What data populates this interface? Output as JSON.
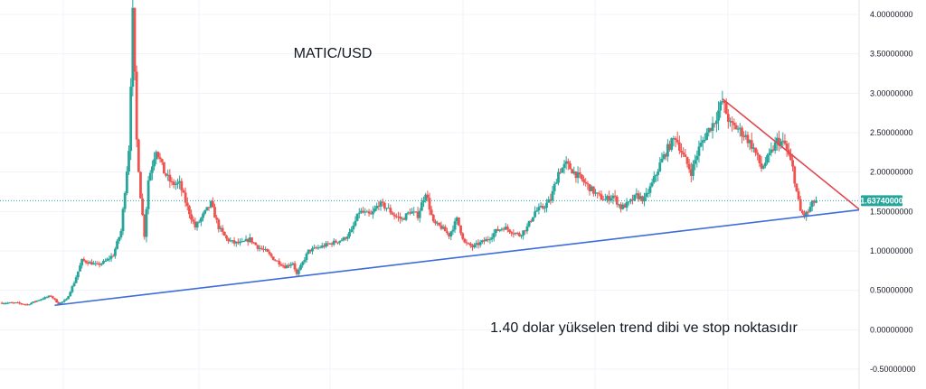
{
  "chart_data": {
    "type": "candlestick",
    "title": "MATIC/USD",
    "annotation": "1.40 dolar yükselen trend dibi ve stop noktasıdır",
    "y_ticks": [
      "4.00000000",
      "3.50000000",
      "3.00000000",
      "2.50000000",
      "2.00000000",
      "1.50000000",
      "1.00000000",
      "0.50000000",
      "0.00000000",
      "-0.50000000"
    ],
    "y_tick_values": [
      4.0,
      3.5,
      3.0,
      2.5,
      2.0,
      1.5,
      1.0,
      0.5,
      0.0,
      -0.5
    ],
    "ylim": [
      -0.55,
      4.0
    ],
    "x_range": [
      0,
      220
    ],
    "grid": true,
    "current_price": 1.6374,
    "current_price_label": "1.63740000",
    "price_line_color": "#26a69a",
    "up_color": "#26a69a",
    "down_color": "#ef5350",
    "trend_lines": [
      {
        "name": "rising-support",
        "color": "#3d6ddb",
        "points": [
          [
            14,
            0.31
          ],
          [
            220,
            1.52
          ]
        ]
      },
      {
        "name": "falling-resistance",
        "color": "#e0474f",
        "points": [
          [
            185,
            2.93
          ],
          [
            220,
            1.53
          ]
        ]
      }
    ],
    "close_path": [
      [
        0,
        0.34
      ],
      [
        4,
        0.34
      ],
      [
        7,
        0.32
      ],
      [
        10,
        0.38
      ],
      [
        13,
        0.43
      ],
      [
        15,
        0.33
      ],
      [
        17,
        0.38
      ],
      [
        19,
        0.6
      ],
      [
        21,
        0.88
      ],
      [
        23,
        0.85
      ],
      [
        25,
        0.82
      ],
      [
        27,
        0.87
      ],
      [
        29,
        0.95
      ],
      [
        31,
        1.25
      ],
      [
        33,
        2.3
      ],
      [
        34,
        4.0
      ],
      [
        35,
        2.4
      ],
      [
        36,
        1.7
      ],
      [
        37,
        1.2
      ],
      [
        38,
        1.9
      ],
      [
        40,
        2.3
      ],
      [
        42,
        2.0
      ],
      [
        44,
        1.85
      ],
      [
        46,
        1.85
      ],
      [
        48,
        1.55
      ],
      [
        50,
        1.3
      ],
      [
        52,
        1.45
      ],
      [
        54,
        1.6
      ],
      [
        56,
        1.3
      ],
      [
        58,
        1.15
      ],
      [
        60,
        1.1
      ],
      [
        62,
        1.1
      ],
      [
        64,
        1.15
      ],
      [
        66,
        1.05
      ],
      [
        68,
        1.0
      ],
      [
        70,
        0.9
      ],
      [
        73,
        0.8
      ],
      [
        75,
        0.85
      ],
      [
        76,
        0.7
      ],
      [
        77,
        0.8
      ],
      [
        79,
        1.0
      ],
      [
        82,
        1.05
      ],
      [
        85,
        1.1
      ],
      [
        88,
        1.15
      ],
      [
        90,
        1.25
      ],
      [
        92,
        1.5
      ],
      [
        95,
        1.45
      ],
      [
        97,
        1.6
      ],
      [
        99,
        1.55
      ],
      [
        101,
        1.45
      ],
      [
        103,
        1.4
      ],
      [
        105,
        1.5
      ],
      [
        107,
        1.45
      ],
      [
        109,
        1.75
      ],
      [
        111,
        1.35
      ],
      [
        113,
        1.3
      ],
      [
        115,
        1.2
      ],
      [
        117,
        1.4
      ],
      [
        119,
        1.1
      ],
      [
        121,
        1.05
      ],
      [
        123,
        1.1
      ],
      [
        125,
        1.15
      ],
      [
        127,
        1.25
      ],
      [
        129,
        1.3
      ],
      [
        131,
        1.25
      ],
      [
        133,
        1.2
      ],
      [
        135,
        1.3
      ],
      [
        137,
        1.5
      ],
      [
        139,
        1.55
      ],
      [
        141,
        1.65
      ],
      [
        143,
        2.0
      ],
      [
        145,
        2.1
      ],
      [
        147,
        2.0
      ],
      [
        149,
        1.9
      ],
      [
        151,
        1.8
      ],
      [
        153,
        1.7
      ],
      [
        155,
        1.65
      ],
      [
        157,
        1.7
      ],
      [
        159,
        1.55
      ],
      [
        161,
        1.6
      ],
      [
        163,
        1.7
      ],
      [
        165,
        1.65
      ],
      [
        167,
        1.85
      ],
      [
        169,
        2.1
      ],
      [
        171,
        2.3
      ],
      [
        173,
        2.45
      ],
      [
        175,
        2.2
      ],
      [
        177,
        2.0
      ],
      [
        179,
        2.3
      ],
      [
        181,
        2.5
      ],
      [
        183,
        2.65
      ],
      [
        185,
        2.9
      ],
      [
        187,
        2.6
      ],
      [
        189,
        2.55
      ],
      [
        191,
        2.45
      ],
      [
        193,
        2.3
      ],
      [
        195,
        2.05
      ],
      [
        197,
        2.2
      ],
      [
        199,
        2.4
      ],
      [
        201,
        2.35
      ],
      [
        203,
        2.05
      ],
      [
        204,
        1.75
      ],
      [
        205,
        1.5
      ],
      [
        206,
        1.45
      ],
      [
        207,
        1.5
      ],
      [
        208,
        1.6
      ],
      [
        209,
        1.64
      ]
    ]
  }
}
